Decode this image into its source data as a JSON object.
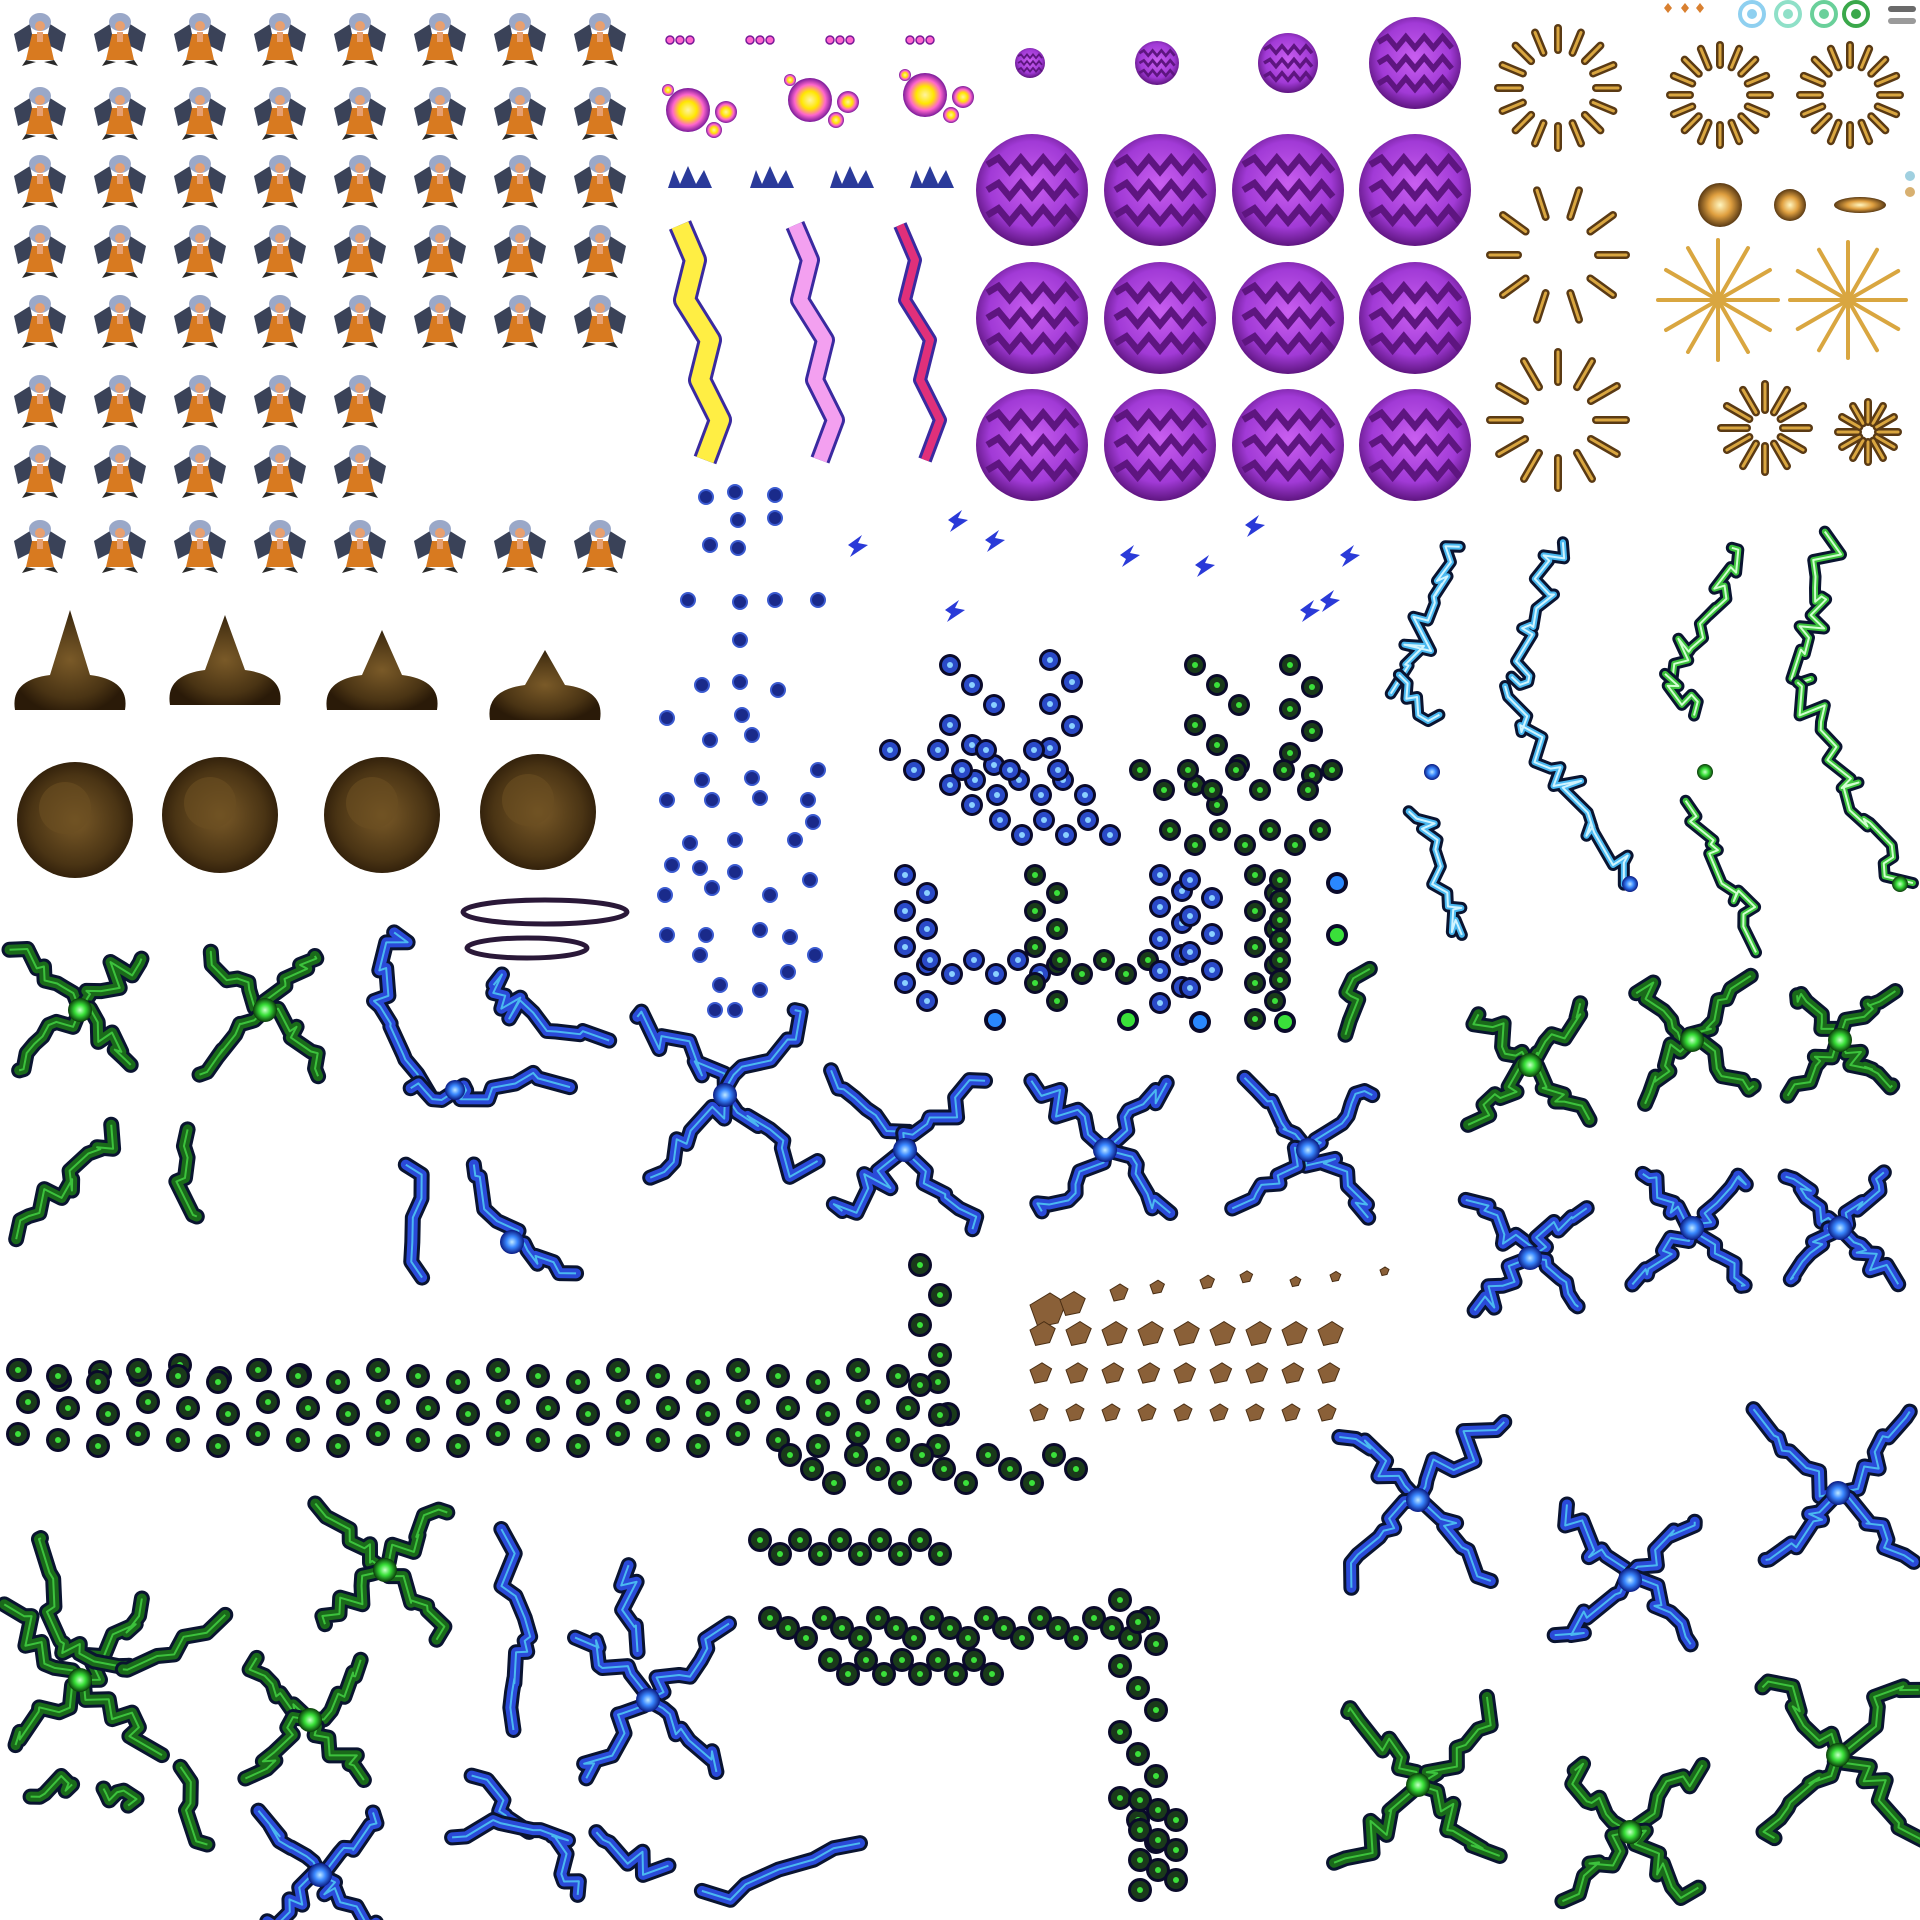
{
  "sheet": {
    "kind": "sprite-sheet",
    "background": "#ffffff"
  },
  "palette": {
    "char_hair": "#9aa8c8",
    "char_skin": "#e8a070",
    "char_dress": "#d87a20",
    "char_wing": "#3a4258",
    "smoke_dark": "#3a2a12",
    "smoke_mid": "#6b4e22",
    "orb_light": "#b24be0",
    "orb_dark": "#5e1580",
    "orb_zig": "#7a1fa6",
    "bubble_core": "#ffe600",
    "bubble_pink": "#ff66cc",
    "bubble_violet": "#7a1a9a",
    "crown_blue": "#2a3a9a",
    "bolt_yellow": "#ffee44",
    "bolt_pink": "#f3a0f0",
    "bolt_magenta": "#e0307a",
    "bolt_edge": "#3a2aa0",
    "spark_navy": "#1a2a8a",
    "cloud_blue": "#2a55d8",
    "cloud_green": "#2fd06a",
    "lightning_cyan": "#4ab8f0",
    "lightning_green": "#3cc23c",
    "glow_blue": "#2a6fff",
    "glow_green": "#38e038",
    "outline_dark": "#0a1a0a",
    "burst_brown": "#5a3a14",
    "burst_gold": "#d9a640",
    "rock_brown": "#8a6038",
    "ring_dark": "#2a1838"
  },
  "groups": [
    {
      "name": "character-frames",
      "description_icon": "winged-sorceress-icon",
      "count": 58
    },
    {
      "name": "pink-bubble-frames",
      "description_icon": "bubble-icon",
      "count": 12
    },
    {
      "name": "blue-crown-frames",
      "description_icon": "crown-icon",
      "count": 4
    },
    {
      "name": "colored-bolt-frames",
      "description_icon": "lightning-bolt-icon",
      "count": 3
    },
    {
      "name": "purple-orb-frames",
      "description_icon": "purple-orb-icon",
      "count": 16
    },
    {
      "name": "brown-burst-rings",
      "description_icon": "burst-ring-icon",
      "count": 10
    },
    {
      "name": "status-icons",
      "description_icon": "status-icon",
      "count": 8
    },
    {
      "name": "smoke-cloud-frames",
      "description_icon": "smoke-cloud-icon",
      "count": 8
    },
    {
      "name": "navy-spark-particles",
      "description_icon": "spark-dot-icon",
      "count": 48
    },
    {
      "name": "blue-shard-sprites",
      "description_icon": "shard-icon",
      "count": 10
    },
    {
      "name": "glow-chain-blobs",
      "description_icon": "chain-blob-icon",
      "count": 14
    },
    {
      "name": "electric-vine-frames",
      "description_icon": "electric-vine-icon",
      "count": 8
    },
    {
      "name": "cross-lightning-frames",
      "description_icon": "cross-lightning-icon",
      "count": 30
    },
    {
      "name": "dark-halo-rings",
      "description_icon": "halo-ring-icon",
      "count": 2
    },
    {
      "name": "rock-debris-frames",
      "description_icon": "rock-debris-icon",
      "count": 34
    }
  ]
}
